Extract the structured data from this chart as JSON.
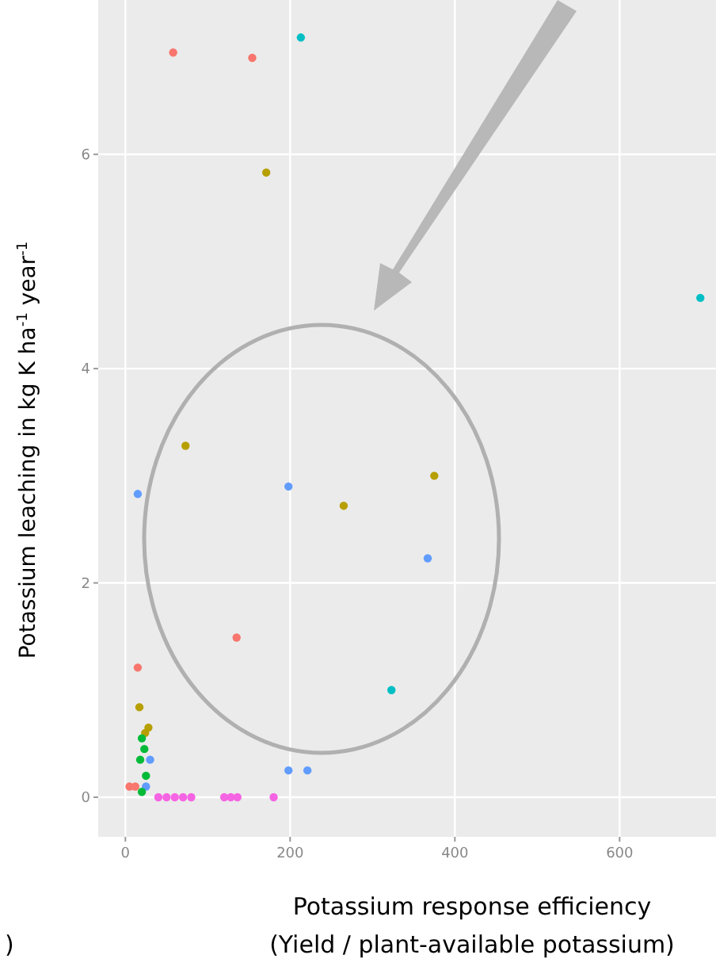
{
  "chart_data": {
    "type": "scatter",
    "xlabel": "Potassium response efficiency\n(Yield / plant-available potassium)",
    "ylabel": "Potassium leaching in kg K ha$^{-1}$ year$^{-1}$",
    "annotations": [
      ")"
    ],
    "xlim": [
      -33,
      717
    ],
    "ylim": [
      -0.37,
      7.44
    ],
    "xticks": [
      0,
      200,
      400,
      600
    ],
    "yticks": [
      0,
      2,
      4,
      6
    ],
    "grid": true,
    "marker": "circle",
    "series": [
      {
        "color": "#f8766d",
        "x": [
          58,
          154,
          135,
          15,
          5,
          12
        ],
        "values": [
          6.95,
          6.9,
          1.49,
          1.21,
          0.1,
          0.1
        ]
      },
      {
        "color": "#00bfc4",
        "x": [
          213,
          698,
          323
        ],
        "values": [
          7.09,
          4.66,
          1.0
        ]
      },
      {
        "color": "#b79f00",
        "x": [
          171,
          73,
          375,
          265,
          17,
          24,
          28
        ],
        "values": [
          5.83,
          3.28,
          3.0,
          2.72,
          0.84,
          0.6,
          0.65
        ]
      },
      {
        "color": "#619cff",
        "x": [
          15,
          198,
          367,
          198,
          221,
          25,
          30
        ],
        "values": [
          2.83,
          2.9,
          2.23,
          0.25,
          0.25,
          0.1,
          0.35
        ]
      },
      {
        "color": "#00ba38",
        "x": [
          20,
          23,
          18,
          25,
          20
        ],
        "values": [
          0.55,
          0.45,
          0.35,
          0.2,
          0.05
        ]
      },
      {
        "color": "#f564e3",
        "x": [
          40,
          50,
          60,
          70,
          80,
          120,
          128,
          136,
          180
        ],
        "values": [
          0,
          0,
          0,
          0,
          0,
          0,
          0,
          0,
          0
        ]
      }
    ]
  }
}
